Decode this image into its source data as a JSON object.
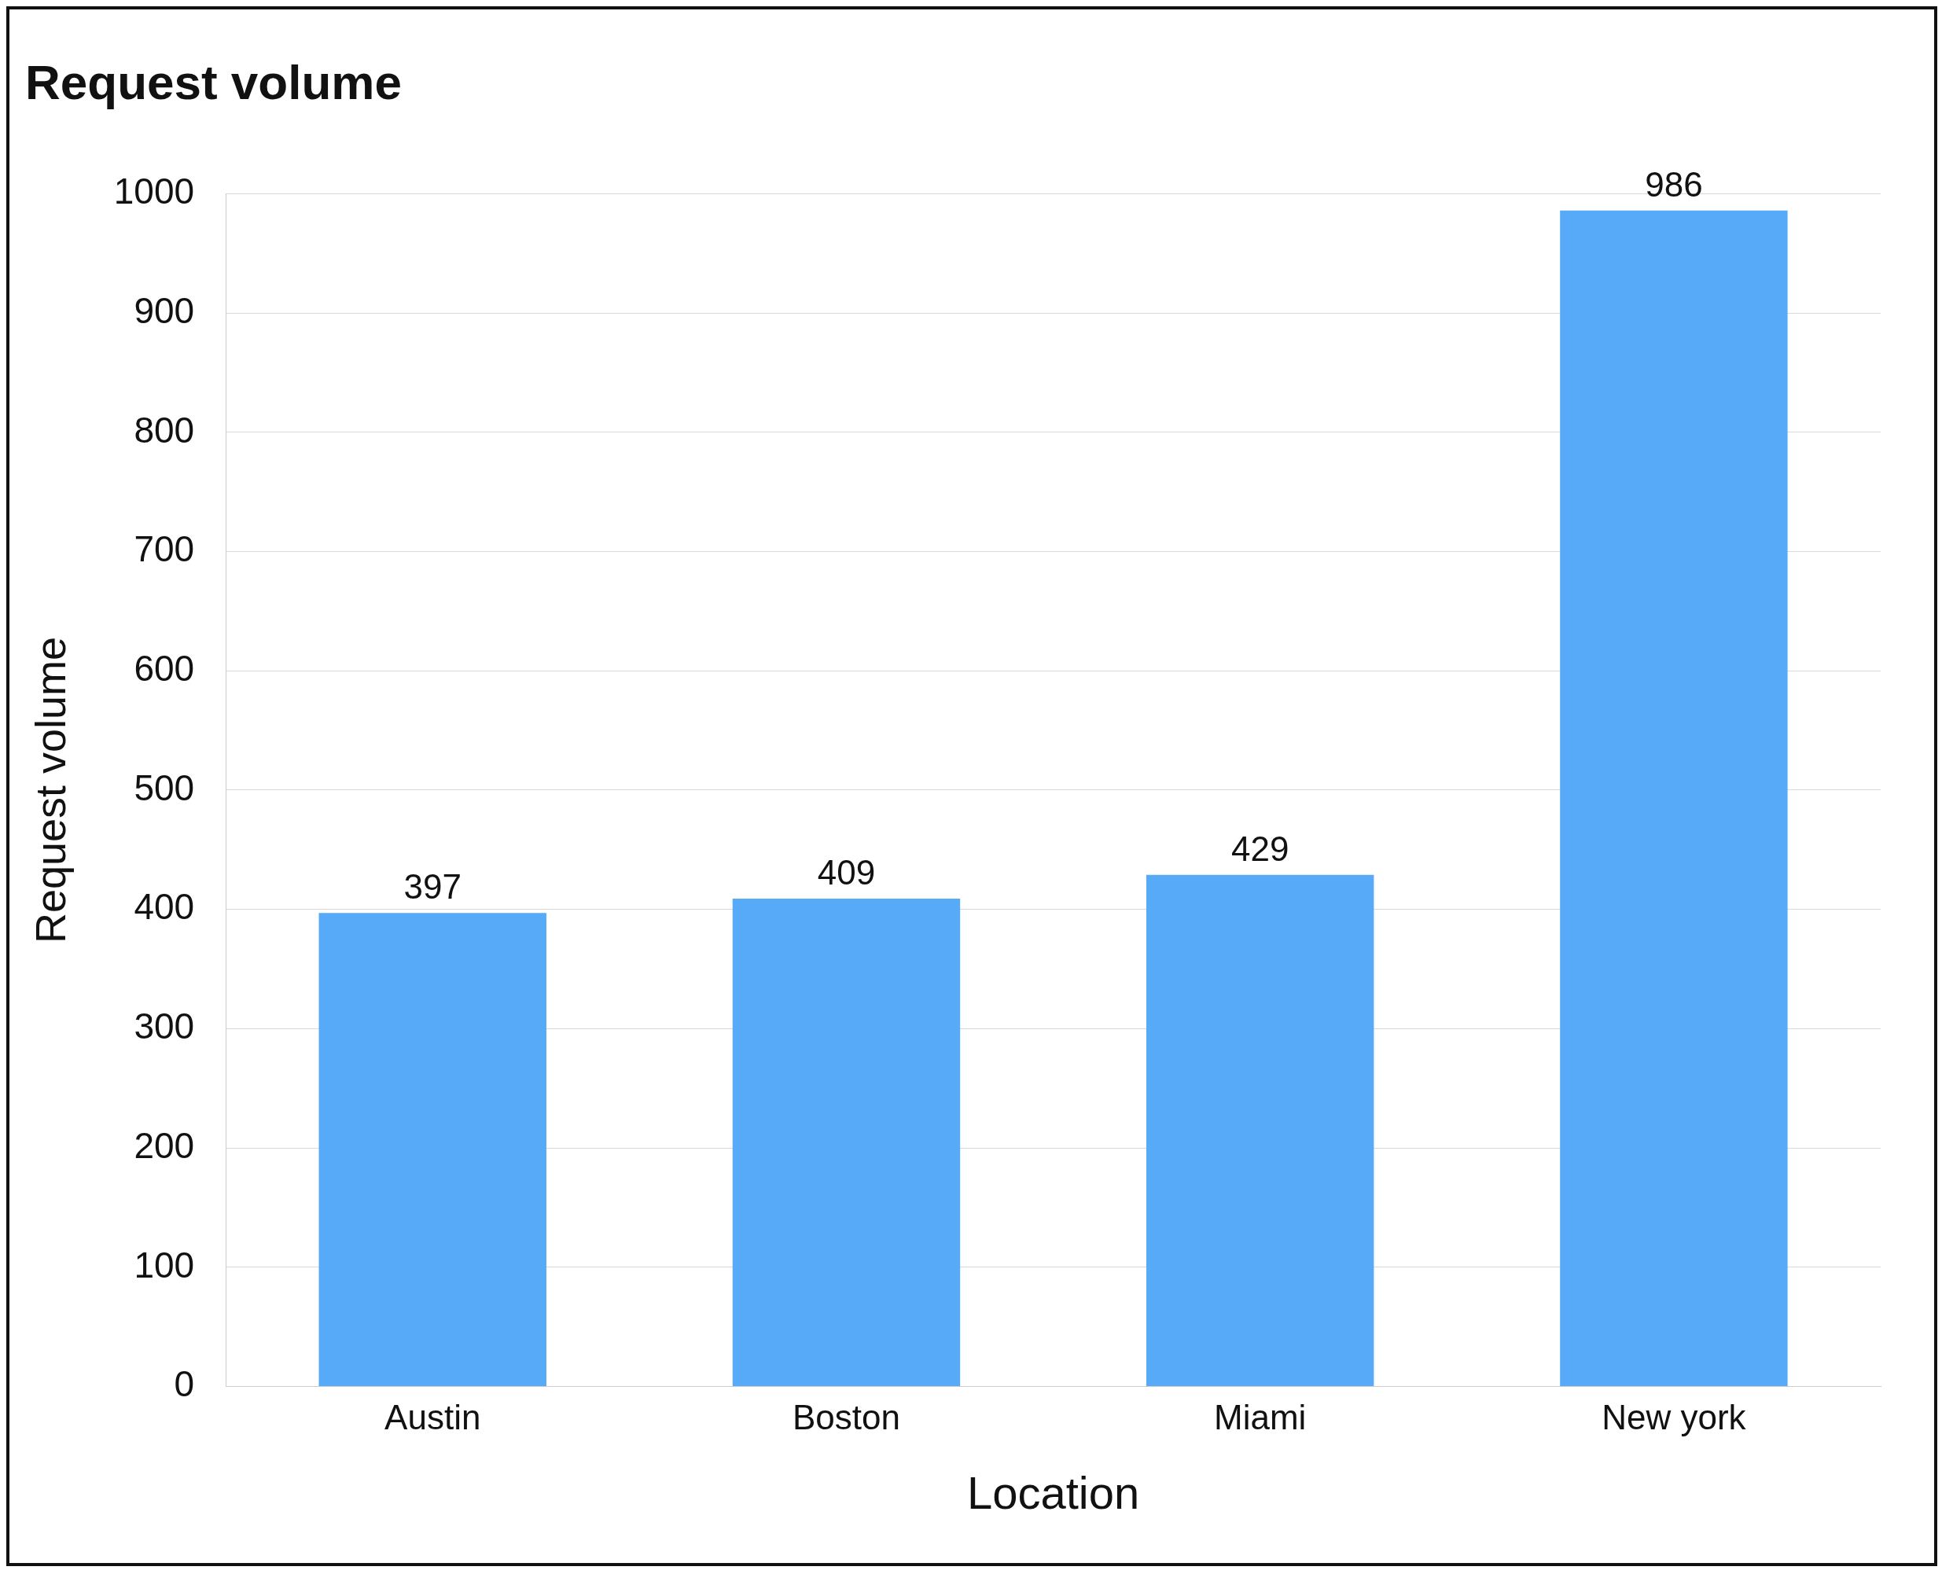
{
  "chart_data": {
    "type": "bar",
    "title": "Request volume",
    "xlabel": "Location",
    "ylabel": "Request volume",
    "categories": [
      "Austin",
      "Boston",
      "Miami",
      "New york"
    ],
    "values": [
      397,
      409,
      429,
      986
    ],
    "color": "#57aaf8",
    "ylim": [
      0,
      1000
    ],
    "yticks": [
      0,
      100,
      200,
      300,
      400,
      500,
      600,
      700,
      800,
      900,
      1000
    ],
    "grid": "y",
    "data_labels": true,
    "legend": false
  }
}
